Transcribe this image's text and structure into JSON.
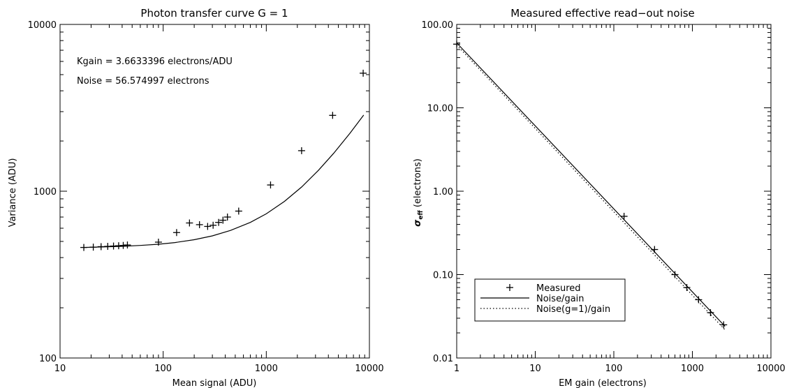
{
  "chart_data": [
    {
      "type": "scatter",
      "title": "Photon transfer curve G = 1",
      "xlabel": "Mean signal (ADU)",
      "ylabel": "Variance (ADU)",
      "xscale": "log",
      "yscale": "log",
      "xlim": [
        10,
        10000
      ],
      "ylim": [
        100,
        10000
      ],
      "x_ticks": [
        {
          "value": 10,
          "label": "10"
        },
        {
          "value": 100,
          "label": "100"
        },
        {
          "value": 1000,
          "label": "1000"
        },
        {
          "value": 10000,
          "label": "10000"
        }
      ],
      "y_ticks": [
        {
          "value": 100,
          "label": "100"
        },
        {
          "value": 1000,
          "label": "1000"
        },
        {
          "value": 10000,
          "label": "10000"
        }
      ],
      "annotations": [
        "Kgain = 3.6633396 electrons/ADU",
        "Noise = 56.574997 electrons"
      ],
      "series": [
        {
          "marker": "plus",
          "x": [
            17,
            21,
            25,
            29,
            33,
            37,
            41,
            45,
            90,
            135,
            180,
            225,
            270,
            305,
            345,
            380,
            420,
            540,
            1100,
            2200,
            4400,
            8700
          ],
          "y": [
            460,
            462,
            465,
            467,
            469,
            471,
            473,
            476,
            495,
            565,
            645,
            630,
            615,
            625,
            650,
            670,
            700,
            760,
            1090,
            1750,
            2850,
            5100
          ]
        },
        {
          "marker": "line",
          "x": [
            17,
            25,
            40,
            60,
            90,
            130,
            200,
            300,
            450,
            700,
            1000,
            1500,
            2200,
            3200,
            4500,
            6500,
            8800
          ],
          "y": [
            460,
            463,
            467,
            473,
            481,
            492,
            512,
            540,
            582,
            650,
            732,
            869,
            1060,
            1333,
            1688,
            2234,
            2862
          ]
        }
      ]
    },
    {
      "type": "line",
      "title": "Measured effective read−out noise",
      "xlabel": "EM gain (electrons)",
      "ylabel_symbol": "σ",
      "ylabel_subscript": "eff",
      "ylabel_rest": " (electrons)",
      "xscale": "log",
      "yscale": "log",
      "xlim": [
        1,
        10000
      ],
      "ylim": [
        0.01,
        100
      ],
      "x_ticks": [
        {
          "value": 1,
          "label": "1"
        },
        {
          "value": 10,
          "label": "10"
        },
        {
          "value": 100,
          "label": "100"
        },
        {
          "value": 1000,
          "label": "1000"
        },
        {
          "value": 10000,
          "label": "10000"
        }
      ],
      "y_ticks": [
        {
          "value": 0.01,
          "label": "0.01"
        },
        {
          "value": 0.1,
          "label": "0.10"
        },
        {
          "value": 1,
          "label": "1.00"
        },
        {
          "value": 10,
          "label": "10.00"
        },
        {
          "value": 100,
          "label": "100.00"
        }
      ],
      "legend_position": "bottom-left",
      "series": [
        {
          "name": "Measured",
          "marker": "plus",
          "x": [
            1,
            135,
            330,
            600,
            850,
            1200,
            1700,
            2500
          ],
          "y": [
            58,
            0.5,
            0.2,
            0.1,
            0.07,
            0.05,
            0.035,
            0.025
          ]
        },
        {
          "name": "Noise/gain",
          "marker": "solid",
          "x": [
            1,
            2600
          ],
          "y": [
            60,
            0.024
          ]
        },
        {
          "name": "Noise(g=1)/gain",
          "marker": "dotted",
          "x": [
            1,
            2600
          ],
          "y": [
            56.6,
            0.0218
          ]
        }
      ]
    }
  ]
}
